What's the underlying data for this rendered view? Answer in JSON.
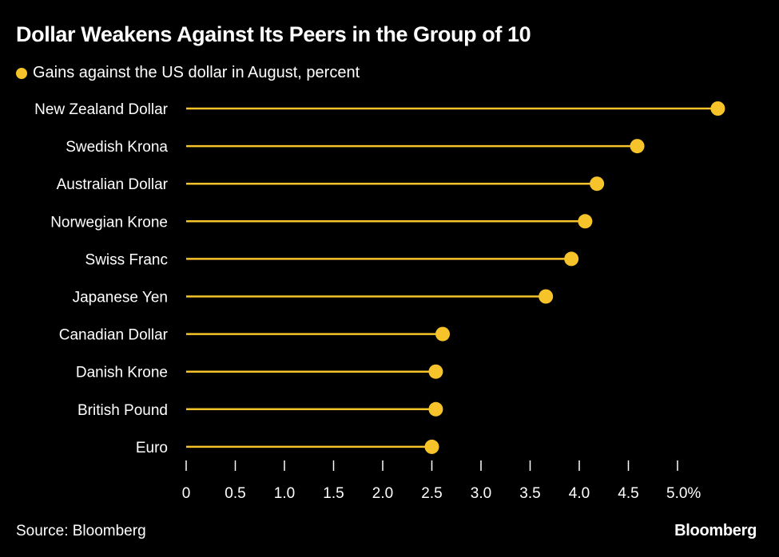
{
  "title": "Dollar Weakens Against Its Peers in the Group of 10",
  "source": "Source: Bloomberg",
  "logo": "Bloomberg",
  "colors": {
    "accent": "#f6c32a",
    "background": "#000000",
    "text": "#ffffff"
  },
  "chart_data": {
    "type": "lollipop",
    "title": "Dollar Weakens Against Its Peers in the Group of 10",
    "legend": [
      {
        "label": "Gains against the US dollar in August, percent"
      }
    ],
    "categories": [
      "New Zealand Dollar",
      "Swedish Krona",
      "Australian Dollar",
      "Norwegian Krone",
      "Swiss Franc",
      "Japanese Yen",
      "Canadian Dollar",
      "Danish Krone",
      "British Pound",
      "Euro"
    ],
    "values": [
      5.41,
      4.59,
      4.18,
      4.06,
      3.92,
      3.66,
      2.61,
      2.54,
      2.54,
      2.5
    ],
    "xlim": [
      0,
      5.0
    ],
    "x_ticks": [
      "0",
      "0.5",
      "1.0",
      "1.5",
      "2.0",
      "2.5",
      "3.0",
      "3.5",
      "4.0",
      "4.5",
      "5.0%"
    ],
    "legend_position": "top-left",
    "grid": false
  }
}
